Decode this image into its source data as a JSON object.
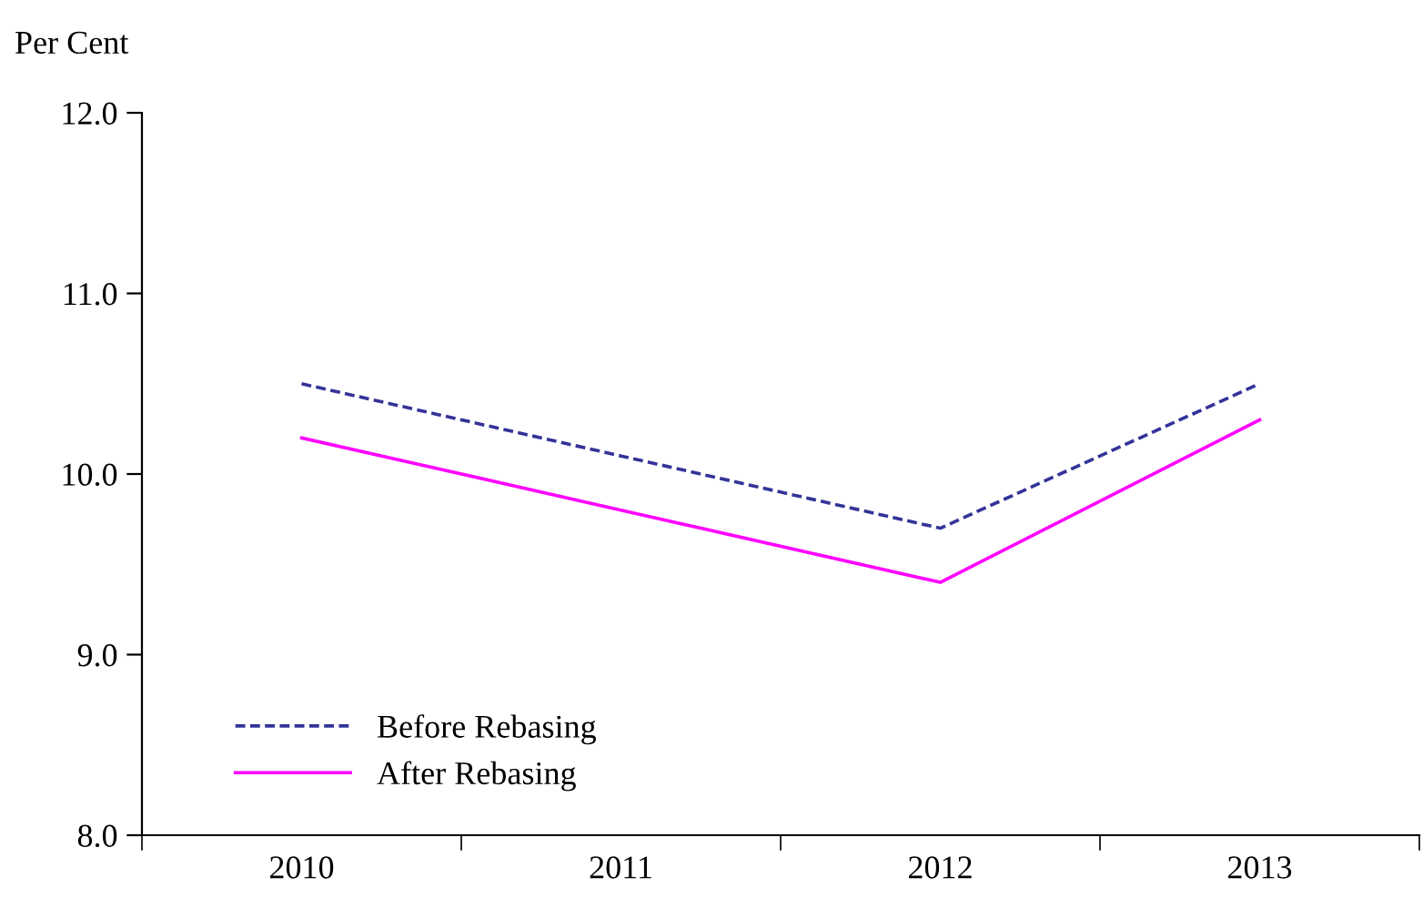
{
  "chart_data": {
    "type": "line",
    "ylabel": "Per Cent",
    "categories": [
      "2010",
      "2011",
      "2012",
      "2013"
    ],
    "series": [
      {
        "name": "Before Rebasing",
        "color": "#333399",
        "line_style": "dashed",
        "values": [
          10.5,
          10.1,
          9.7,
          10.5
        ]
      },
      {
        "name": "After Rebasing",
        "color": "#ff00ff",
        "line_style": "solid",
        "values": [
          10.2,
          9.8,
          9.4,
          10.3
        ]
      }
    ],
    "ylim": [
      8.0,
      12.0
    ],
    "yticks": [
      {
        "value": 8,
        "label": "8.0"
      },
      {
        "value": 9,
        "label": "9.0"
      },
      {
        "value": 10,
        "label": "10.0"
      },
      {
        "value": 11,
        "label": "11.0"
      },
      {
        "value": 12,
        "label": "12.0"
      }
    ],
    "grid": false,
    "legend": "bottom left",
    "marker": "none"
  }
}
